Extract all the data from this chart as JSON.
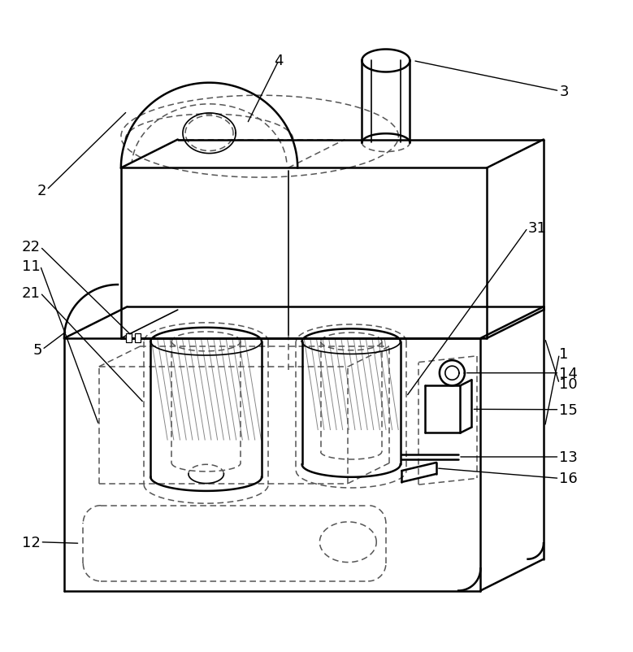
{
  "bg_color": "#ffffff",
  "lw_main": 1.8,
  "lw_thin": 1.2,
  "lw_dash": 1.1,
  "lw_label": 1.0,
  "label_fs": 13,
  "dash_pattern": [
    5,
    3
  ],
  "figsize": [
    7.79,
    8.03
  ],
  "dpi": 100
}
